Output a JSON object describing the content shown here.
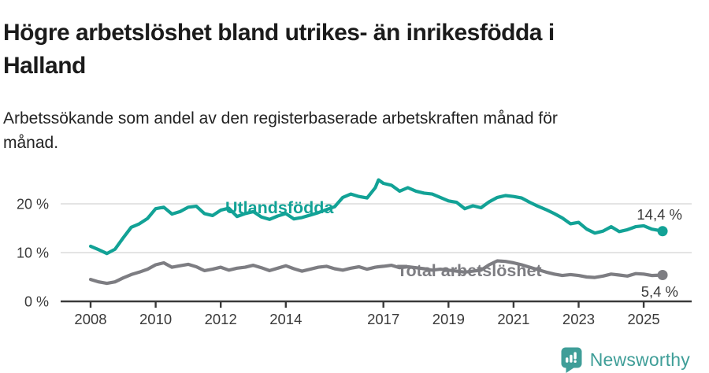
{
  "header": {
    "title": "Högre arbetslöshet bland utrikes- än inrikesfödda i\nHalland",
    "subtitle": "Arbetssökande som andel av den registerbaserade arbetskraften månad för\nmånad."
  },
  "theme": {
    "accent_teal": "#12a296",
    "line_gray": "#7d7d82",
    "axis_color": "#3a3a3a",
    "grid_color": "#dcdcdc",
    "brand_teal": "#3f9e98"
  },
  "chart_data": {
    "type": "line",
    "title": "Högre arbetslöshet bland utrikes- än inrikesfödda i Halland",
    "subtitle": "Arbetssökande som andel av den registerbaserade arbetskraften månad för månad.",
    "unit": "%",
    "grid": "horizontal-only",
    "xlim": [
      2007.1,
      2026.6
    ],
    "ylim": [
      0,
      30
    ],
    "x_ticks": [
      2008,
      2010,
      2012,
      2014,
      2017,
      2019,
      2021,
      2023,
      2025
    ],
    "y_ticks": [
      {
        "value": 0,
        "label": "0 %"
      },
      {
        "value": 10,
        "label": "10 %"
      },
      {
        "value": 20,
        "label": "20 %"
      }
    ],
    "x": [
      2008,
      2008.25,
      2008.5,
      2008.75,
      2009,
      2009.25,
      2009.5,
      2009.75,
      2010,
      2010.25,
      2010.5,
      2010.75,
      2011,
      2011.25,
      2011.5,
      2011.75,
      2012,
      2012.25,
      2012.5,
      2012.75,
      2013,
      2013.25,
      2013.5,
      2013.75,
      2014,
      2014.25,
      2014.5,
      2014.75,
      2015,
      2015.25,
      2015.5,
      2015.75,
      2016,
      2016.25,
      2016.5,
      2016.75,
      2016.85,
      2017,
      2017.25,
      2017.5,
      2017.75,
      2018,
      2018.25,
      2018.5,
      2018.75,
      2019,
      2019.25,
      2019.5,
      2019.75,
      2020,
      2020.25,
      2020.5,
      2020.75,
      2021,
      2021.25,
      2021.5,
      2021.75,
      2022,
      2022.25,
      2022.5,
      2022.75,
      2023,
      2023.25,
      2023.5,
      2023.75,
      2024,
      2024.25,
      2024.5,
      2024.75,
      2025,
      2025.25,
      2025.58
    ],
    "series": [
      {
        "name": "Utlandsfödda",
        "color": "#12a296",
        "end_label": "14,4 %",
        "end_value": 14.4,
        "values": [
          11.3,
          10.6,
          9.8,
          10.7,
          13.0,
          15.2,
          15.9,
          17.0,
          19.0,
          19.3,
          17.9,
          18.4,
          19.3,
          19.5,
          18.0,
          17.6,
          18.7,
          19.1,
          17.4,
          18.0,
          18.4,
          17.3,
          16.8,
          17.5,
          18.0,
          16.9,
          17.2,
          17.7,
          18.2,
          18.8,
          19.4,
          21.3,
          22.0,
          21.5,
          21.2,
          23.3,
          24.9,
          24.2,
          23.8,
          22.6,
          23.3,
          22.6,
          22.2,
          22.0,
          21.3,
          20.6,
          20.3,
          19.0,
          19.6,
          19.2,
          20.4,
          21.3,
          21.7,
          21.5,
          21.2,
          20.3,
          19.5,
          18.8,
          18.0,
          17.1,
          15.9,
          16.2,
          14.8,
          14.0,
          14.4,
          15.3,
          14.3,
          14.7,
          15.3,
          15.5,
          14.8,
          14.4
        ]
      },
      {
        "name": "Total arbetslöshet",
        "color": "#7d7d82",
        "end_label": "5,4 %",
        "end_value": 5.4,
        "values": [
          4.5,
          4.0,
          3.7,
          4.0,
          4.8,
          5.5,
          6.0,
          6.6,
          7.5,
          7.9,
          7.0,
          7.3,
          7.6,
          7.1,
          6.3,
          6.6,
          7.0,
          6.4,
          6.8,
          7.0,
          7.4,
          6.9,
          6.3,
          6.8,
          7.3,
          6.7,
          6.2,
          6.6,
          7.0,
          7.2,
          6.7,
          6.4,
          6.8,
          7.1,
          6.6,
          7.0,
          7.1,
          7.2,
          7.4,
          6.9,
          7.1,
          6.9,
          6.7,
          6.4,
          6.6,
          6.4,
          6.2,
          6.0,
          6.2,
          6.4,
          7.5,
          8.3,
          8.2,
          7.9,
          7.5,
          7.0,
          6.5,
          6.0,
          5.6,
          5.3,
          5.5,
          5.3,
          5.0,
          4.9,
          5.2,
          5.6,
          5.4,
          5.2,
          5.7,
          5.6,
          5.3,
          5.4
        ]
      }
    ],
    "legend_position": "inline-on-lines"
  },
  "footer": {
    "brand": "Newsworthy"
  }
}
